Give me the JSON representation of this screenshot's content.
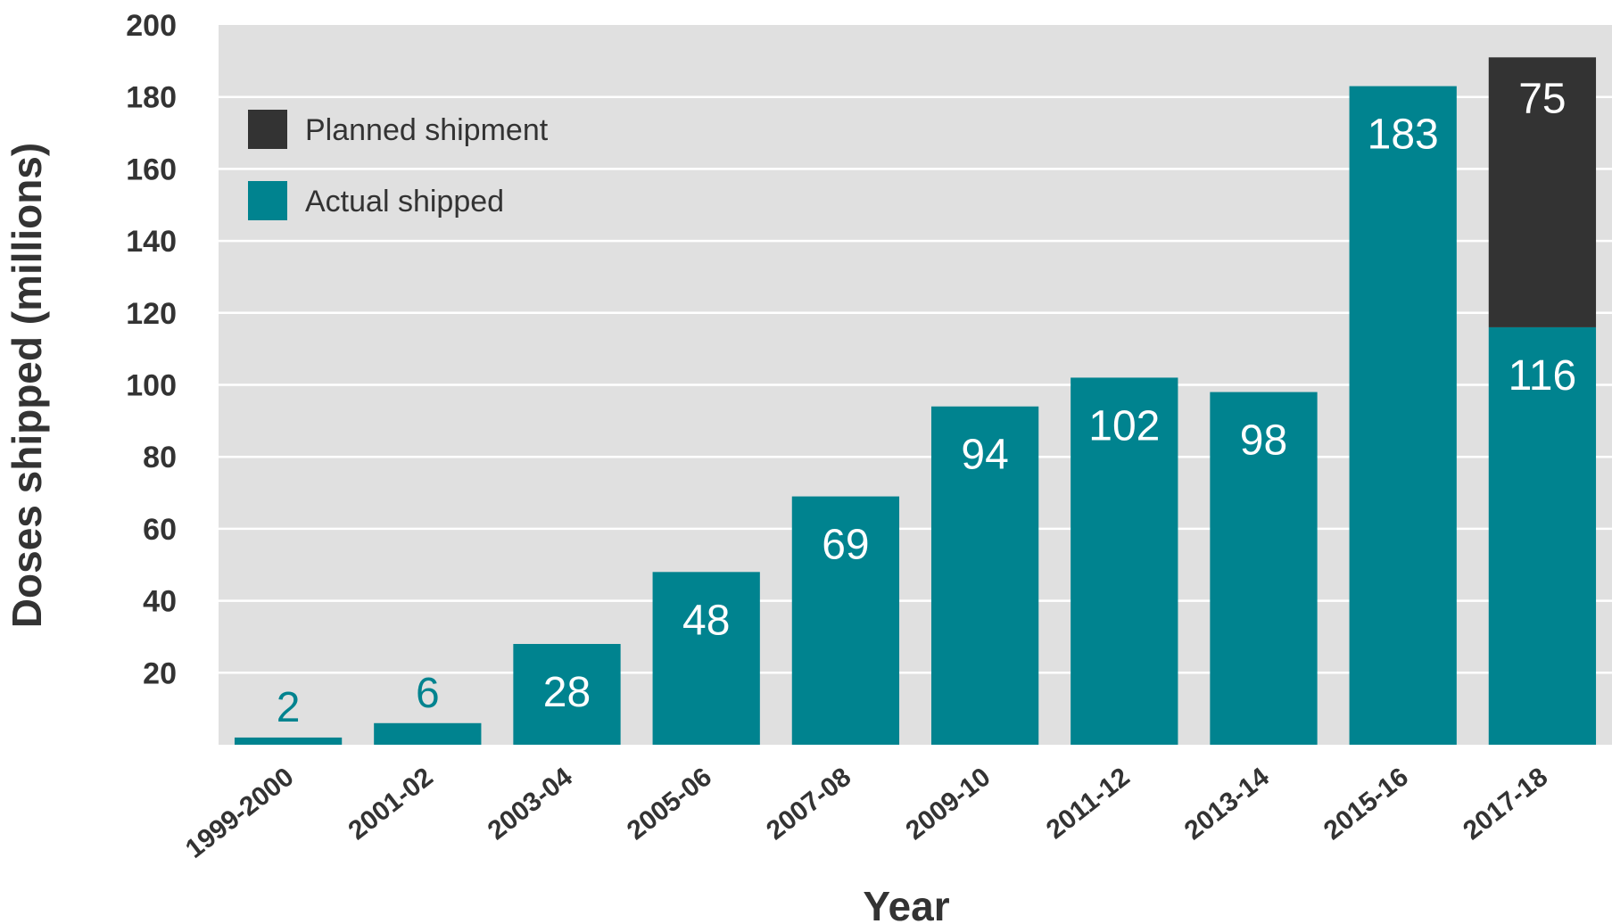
{
  "chart_data": {
    "type": "bar",
    "stacked": true,
    "categories": [
      "1999-2000",
      "2001-02",
      "2003-04",
      "2005-06",
      "2007-08",
      "2009-10",
      "2011-12",
      "2013-14",
      "2015-16",
      "2017-18"
    ],
    "series": [
      {
        "name": "Actual shipped",
        "color": "#00838f",
        "values": [
          2,
          6,
          28,
          48,
          69,
          94,
          102,
          98,
          183,
          116
        ],
        "labels": [
          "2",
          "6",
          "28",
          "48",
          "69",
          "94",
          "102",
          "98",
          "183",
          "116"
        ]
      },
      {
        "name": "Planned shipment",
        "color": "#333333",
        "values": [
          0,
          0,
          0,
          0,
          0,
          0,
          0,
          0,
          0,
          75
        ],
        "labels": [
          "",
          "",
          "",
          "",
          "",
          "",
          "",
          "",
          "",
          "75"
        ]
      }
    ],
    "xlabel": "Year",
    "ylabel": "Doses shipped (millions)",
    "ylim": [
      0,
      200
    ],
    "yticks": [
      20,
      40,
      60,
      80,
      100,
      120,
      140,
      160,
      180,
      200
    ],
    "grid": true,
    "plot_background": "#e0e0e0",
    "legend_position": "top-left"
  }
}
